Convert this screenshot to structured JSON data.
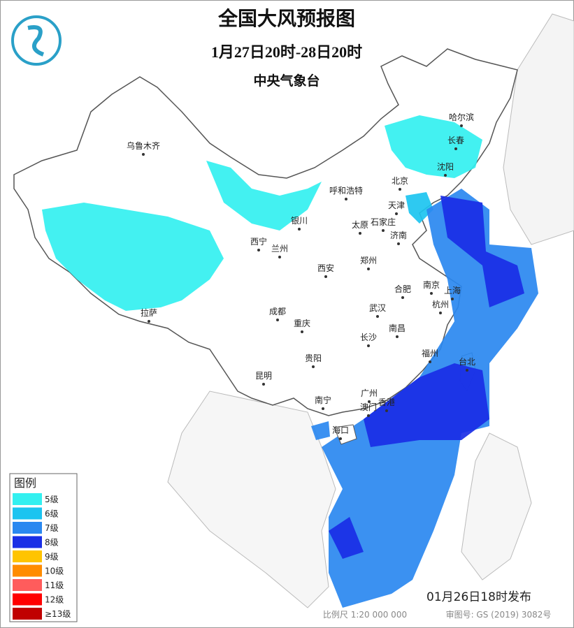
{
  "header": {
    "title": "全国大风预报图",
    "period": "1月27日20时-28日20时",
    "issuer": "中央气象台"
  },
  "cities": [
    "哈尔滨",
    "长春",
    "沈阳",
    "乌鲁木齐",
    "呼和浩特",
    "北京",
    "天津",
    "石家庄",
    "太原",
    "银川",
    "济南",
    "西宁",
    "兰州",
    "郑州",
    "西安",
    "合肥",
    "南京",
    "上海",
    "杭州",
    "成都",
    "武汉",
    "拉萨",
    "重庆",
    "南昌",
    "长沙",
    "贵阳",
    "福州",
    "台北",
    "昆明",
    "南宁",
    "广州",
    "澳门",
    "香港",
    "海口"
  ],
  "legend": {
    "title": "图例",
    "items": [
      {
        "label": "5级",
        "color": "#33f0f0"
      },
      {
        "label": "6级",
        "color": "#1cc4f0"
      },
      {
        "label": "7级",
        "color": "#2a88f0"
      },
      {
        "label": "8级",
        "color": "#1a2ee6"
      },
      {
        "label": "9级",
        "color": "#ffc400"
      },
      {
        "label": "10级",
        "color": "#ff8c00"
      },
      {
        "label": "11级",
        "color": "#ff5c5c"
      },
      {
        "label": "12级",
        "color": "#ff0000"
      },
      {
        "label": "≥13级",
        "color": "#c00000"
      }
    ]
  },
  "footer": {
    "issued": "01月26日18时发布",
    "scale": "比例尺 1:20 000 000",
    "map_number": "审图号: GS (2019) 3082号"
  }
}
